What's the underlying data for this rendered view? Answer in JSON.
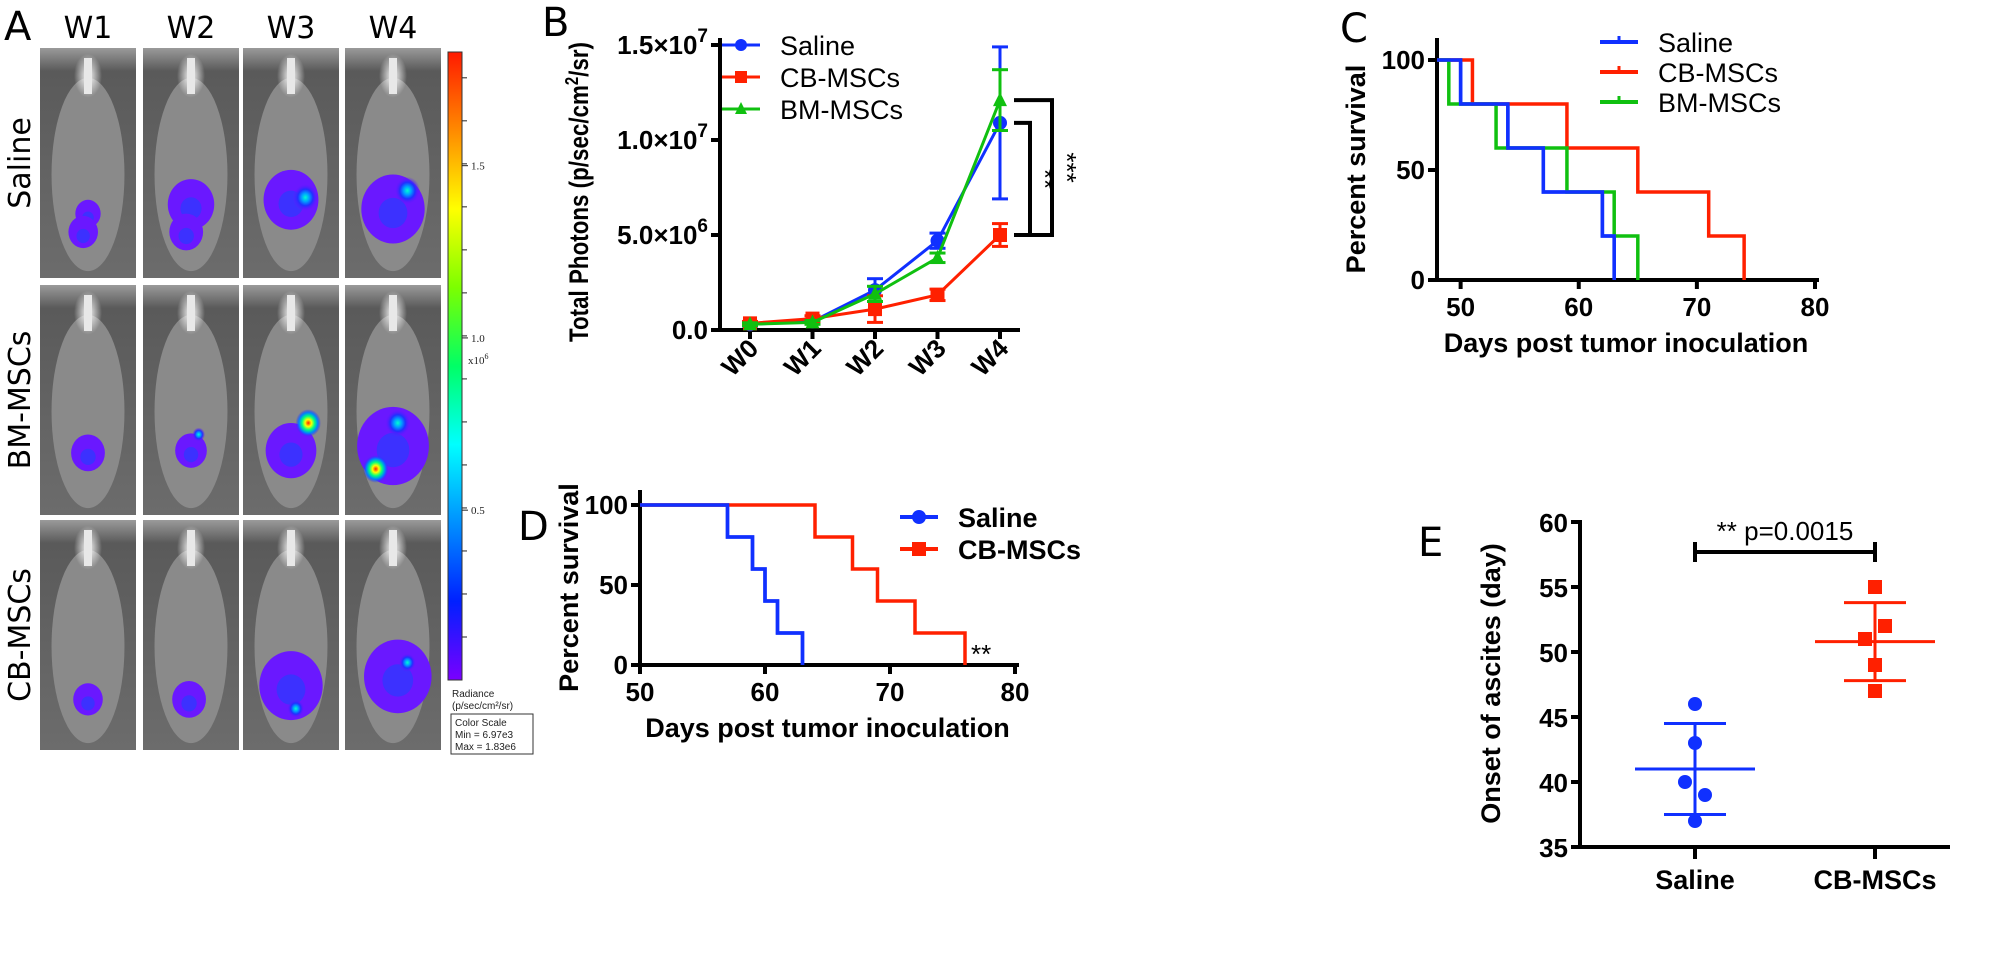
{
  "panel_labels": {
    "a": "A",
    "b": "B",
    "c": "C",
    "d": "D",
    "e": "E"
  },
  "colors": {
    "saline": "#1030ff",
    "cb_mscs": "#ff2000",
    "bm_mscs": "#10c010",
    "axis": "#000000"
  },
  "panel_a": {
    "columns": [
      "W1",
      "W2",
      "W3",
      "W4"
    ],
    "rows": [
      "Saline",
      "BM-MSCs",
      "CB-MSCs"
    ],
    "colorbar": {
      "range": [
        0.00697,
        1.83
      ],
      "ticks": [
        {
          "value": 1.5,
          "label": "1.5"
        },
        {
          "value": 1.0,
          "label": "1.0"
        },
        {
          "value": 0.5,
          "label": "0.5"
        }
      ],
      "multiplier": "x10",
      "multiplier_exp": "6",
      "unit_title": "Radiance",
      "unit": "(p/sec/cm²/sr)",
      "scale_title": "Color Scale",
      "min_label": "Min = 6.97e3",
      "max_label": "Max = 1.83e6",
      "gradient": [
        "#ff1a00",
        "#ff8a00",
        "#ffff00",
        "#7cff00",
        "#00ff66",
        "#00ffff",
        "#0090ff",
        "#0020ff",
        "#7a00ff"
      ]
    }
  },
  "chart_data": [
    {
      "id": "B",
      "type": "line",
      "categories": [
        "W0",
        "W1",
        "W2",
        "W3",
        "W4"
      ],
      "ylabel": "Total Photons (p/sec/cm",
      "ylabel_sup": "2",
      "ylabel_end": "/sr)",
      "ylim": [
        0,
        15000000
      ],
      "yticks": [
        {
          "value": 0,
          "label": "0.0",
          "exp": ""
        },
        {
          "value": 5000000,
          "label": "5.0×10",
          "exp": "6"
        },
        {
          "value": 10000000,
          "label": "1.0×10",
          "exp": "7"
        },
        {
          "value": 15000000,
          "label": "1.5×10",
          "exp": "7"
        }
      ],
      "legend_position": "top",
      "series": [
        {
          "name": "Saline",
          "marker": "circle",
          "color": "#1030ff",
          "values": [
            300000,
            450000,
            2100000,
            4700000,
            10900000
          ],
          "errors": [
            100000,
            100000,
            600000,
            400000,
            4000000
          ]
        },
        {
          "name": "CB-MSCs",
          "marker": "square",
          "color": "#ff2000",
          "values": [
            350000,
            600000,
            1100000,
            1850000,
            5000000
          ],
          "errors": [
            100000,
            150000,
            700000,
            300000,
            600000
          ]
        },
        {
          "name": "BM-MSCs",
          "marker": "triangle",
          "color": "#10c010",
          "values": [
            300000,
            400000,
            1900000,
            3800000,
            12100000
          ],
          "errors": [
            80000,
            100000,
            400000,
            250000,
            1600000
          ]
        }
      ],
      "significance": [
        {
          "between": [
            "Saline",
            "CB-MSCs"
          ],
          "category": "W4",
          "label": "**"
        },
        {
          "between": [
            "BM-MSCs",
            "CB-MSCs"
          ],
          "category": "W4",
          "label": "***"
        }
      ]
    },
    {
      "id": "C",
      "type": "step",
      "xlabel": "Days post tumor inoculation",
      "ylabel": "Percent survival",
      "xlim": [
        48,
        80
      ],
      "ylim": [
        0,
        100
      ],
      "xticks": [
        50,
        60,
        70,
        80
      ],
      "yticks": [
        0,
        50,
        100
      ],
      "legend_position": "top-right",
      "series": [
        {
          "name": "Saline",
          "color": "#1030ff",
          "steps": [
            {
              "day": 50,
              "percent": 80
            },
            {
              "day": 54,
              "percent": 60
            },
            {
              "day": 57,
              "percent": 40
            },
            {
              "day": 62,
              "percent": 20
            },
            {
              "day": 63,
              "percent": 0
            }
          ]
        },
        {
          "name": "CB-MSCs",
          "color": "#ff2000",
          "steps": [
            {
              "day": 51,
              "percent": 80
            },
            {
              "day": 59,
              "percent": 60
            },
            {
              "day": 65,
              "percent": 40
            },
            {
              "day": 71,
              "percent": 20
            },
            {
              "day": 74,
              "percent": 0
            }
          ]
        },
        {
          "name": "BM-MSCs",
          "color": "#10c010",
          "steps": [
            {
              "day": 49,
              "percent": 80
            },
            {
              "day": 53,
              "percent": 60
            },
            {
              "day": 59,
              "percent": 40
            },
            {
              "day": 63,
              "percent": 20
            },
            {
              "day": 65,
              "percent": 0
            }
          ]
        }
      ]
    },
    {
      "id": "D",
      "type": "step",
      "xlabel": "Days post tumor inoculation",
      "ylabel": "Percent survival",
      "xlim": [
        50,
        80
      ],
      "ylim": [
        0,
        100
      ],
      "xticks": [
        50,
        60,
        70,
        80
      ],
      "yticks": [
        0,
        50,
        100
      ],
      "legend_position": "top-right",
      "series": [
        {
          "name": "Saline",
          "marker": "circle",
          "color": "#1030ff",
          "steps": [
            {
              "day": 57,
              "percent": 80
            },
            {
              "day": 59,
              "percent": 60
            },
            {
              "day": 60,
              "percent": 40
            },
            {
              "day": 61,
              "percent": 20
            },
            {
              "day": 63,
              "percent": 0
            }
          ]
        },
        {
          "name": "CB-MSCs",
          "marker": "square",
          "color": "#ff2000",
          "steps": [
            {
              "day": 64,
              "percent": 80
            },
            {
              "day": 67,
              "percent": 60
            },
            {
              "day": 69,
              "percent": 40
            },
            {
              "day": 72,
              "percent": 20
            },
            {
              "day": 76,
              "percent": 0
            }
          ]
        }
      ],
      "annotation": "**"
    },
    {
      "id": "E",
      "type": "scatter",
      "categories": [
        "Saline",
        "CB-MSCs"
      ],
      "ylabel": "Onset of ascites (day)",
      "ylim": [
        35,
        60
      ],
      "yticks": [
        35,
        40,
        45,
        50,
        55,
        60
      ],
      "series": [
        {
          "name": "Saline",
          "marker": "circle",
          "color": "#1030ff",
          "values": [
            46,
            43,
            40,
            39,
            37
          ],
          "mean": 41,
          "sd": 3.5
        },
        {
          "name": "CB-MSCs",
          "marker": "square",
          "color": "#ff2000",
          "values": [
            55,
            52,
            51,
            49,
            47
          ],
          "mean": 50.8,
          "sd": 3.0
        }
      ],
      "significance": {
        "label": "** p=0.0015"
      }
    }
  ]
}
